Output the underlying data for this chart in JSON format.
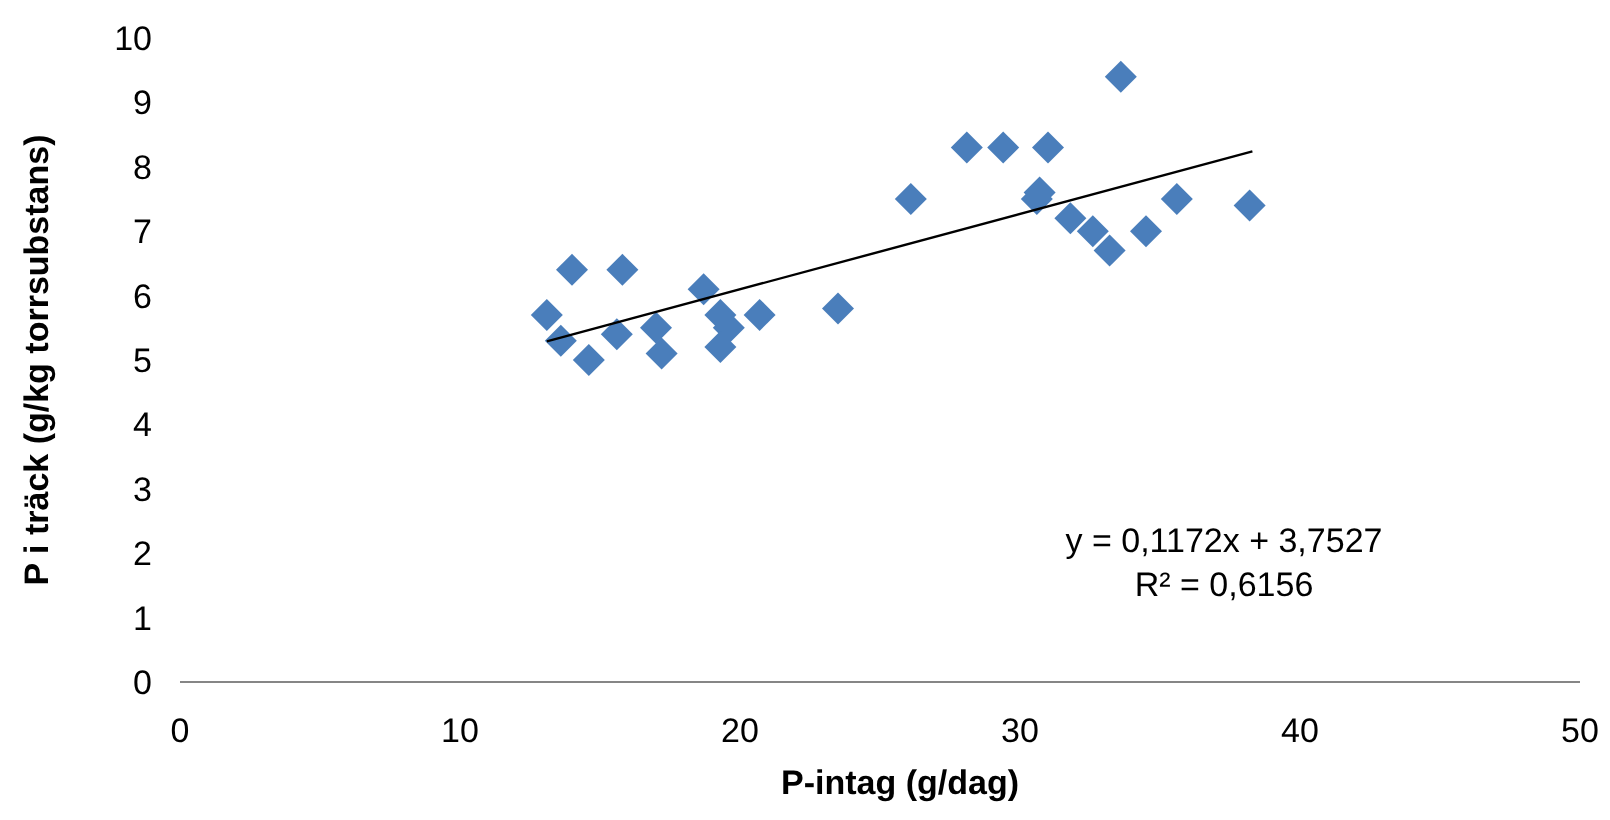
{
  "chart_data": {
    "type": "scatter",
    "xlabel": "P-intag (g/dag)",
    "ylabel": "P i träck (g/kg torrsubstans)",
    "xlim": [
      0,
      50
    ],
    "xticks": [
      0,
      10,
      20,
      30,
      40,
      50
    ],
    "ylim": [
      0,
      10
    ],
    "yticks": [
      0,
      1,
      2,
      3,
      4,
      5,
      6,
      7,
      8,
      9,
      10
    ],
    "grid": false,
    "annotations": [
      "y = 0,1172x + 3,7527",
      "R² = 0,6156"
    ],
    "series": [
      {
        "marker": "diamond",
        "color": "#4a7ebb",
        "x": [
          13.1,
          13.6,
          14.0,
          14.6,
          15.6,
          15.8,
          17.0,
          17.2,
          18.7,
          19.3,
          19.6,
          19.3,
          20.7,
          23.5,
          26.1,
          28.1,
          29.4,
          31.0,
          30.6,
          30.7,
          31.8,
          32.6,
          33.2,
          33.6,
          34.5,
          35.6,
          38.2
        ],
        "values": [
          5.7,
          5.3,
          6.4,
          5.0,
          5.4,
          6.4,
          5.5,
          5.1,
          6.1,
          5.7,
          5.5,
          5.2,
          5.7,
          5.8,
          7.5,
          8.3,
          8.3,
          8.3,
          7.5,
          7.6,
          7.2,
          7.0,
          6.7,
          9.4,
          7.0,
          7.5,
          7.4
        ]
      },
      {
        "type": "line",
        "marker": "none",
        "color": "#000000",
        "x": [
          13.1,
          38.3
        ],
        "values": [
          5.29,
          8.24
        ]
      }
    ]
  }
}
